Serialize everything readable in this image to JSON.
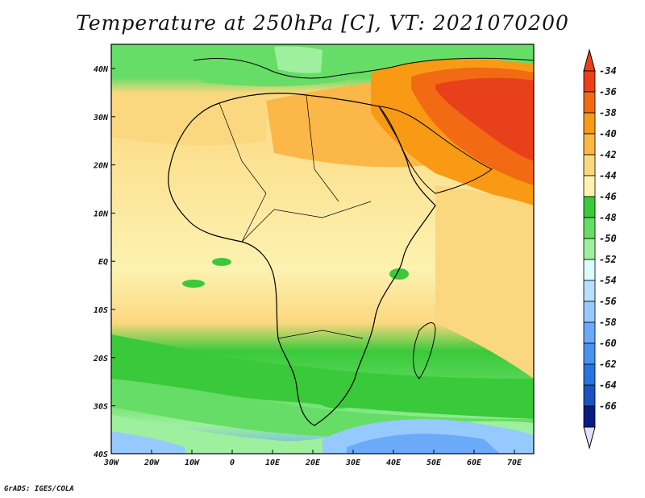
{
  "title": "Temperature at 250hPa [C], VT: 2021070200",
  "footer": "GrADS: IGES/COLA",
  "map": {
    "region": "Africa",
    "lat_labels": [
      "40N",
      "30N",
      "20N",
      "10N",
      "EQ",
      "10S",
      "20S",
      "30S",
      "40S"
    ],
    "lon_labels": [
      "30W",
      "20W",
      "10W",
      "0",
      "10E",
      "20E",
      "30E",
      "40E",
      "50E",
      "60E",
      "70E"
    ]
  },
  "colorbar": {
    "labels": [
      "-34",
      "-36",
      "-38",
      "-40",
      "-42",
      "-44",
      "-46",
      "-48",
      "-50",
      "-52",
      "-54",
      "-56",
      "-58",
      "-60",
      "-62",
      "-64",
      "-66"
    ],
    "colors": [
      "#e8401a",
      "#f26a14",
      "#f99a14",
      "#fbb848",
      "#fbd880",
      "#fdf2b0",
      "#3ac93a",
      "#66dd66",
      "#9ef09e",
      "#dbfcfc",
      "#b6e0ff",
      "#96caff",
      "#6aaaf8",
      "#4a92f0",
      "#2a72de",
      "#1a52c0",
      "#0a1b80"
    ],
    "above_color": "#e8401a",
    "below_color": "#e6e0fa"
  },
  "field_colors": {
    "ocean_north": "#f6c560",
    "sahara": "#fdf2b0",
    "hot_north": "#f99a14",
    "very_hot": "#e8401a",
    "mid_band": "#3ac93a",
    "south_band": "#66dd66",
    "southern_ocean": "#9ef09e",
    "cold_pool": "#6aaaf8"
  }
}
